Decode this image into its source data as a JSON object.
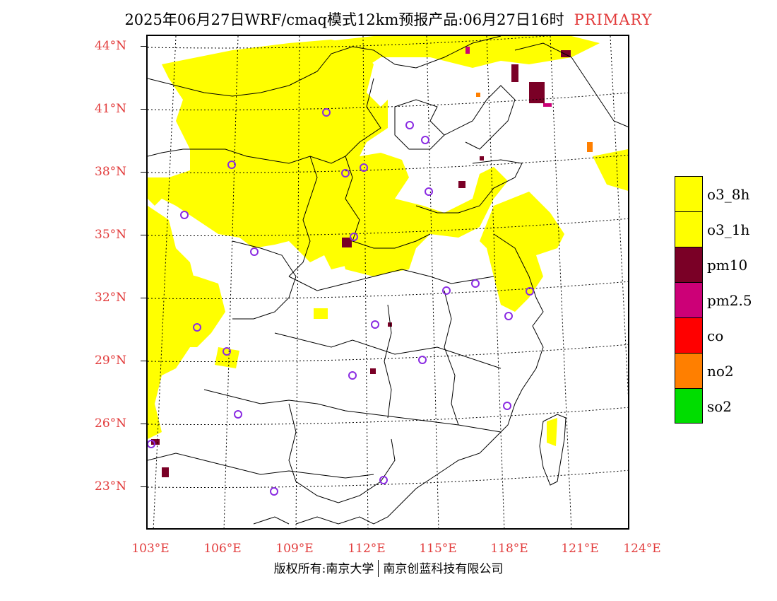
{
  "title": {
    "main": "2025年06月27日WRF/cmaq模式12km预报产品:06月27日16时",
    "tag": "PRIMARY"
  },
  "colors": {
    "accent_label": "#e23b3b",
    "o3_8h": "#ffff00",
    "o3_1h": "#ffff00",
    "pm10": "#7a0026",
    "pm2_5": "#cc0077",
    "co": "#ff0000",
    "no2": "#ff7f00",
    "so2": "#00dd00",
    "station_marker": "#8a2be2"
  },
  "axes": {
    "lat_labels": [
      "44°N",
      "41°N",
      "38°N",
      "35°N",
      "32°N",
      "29°N",
      "26°N",
      "23°N"
    ],
    "lon_labels": [
      "103°E",
      "106°E",
      "109°E",
      "112°E",
      "115°E",
      "118°E",
      "121°E",
      "124°E"
    ]
  },
  "legend": [
    {
      "label": "o3_8h",
      "color": "#ffff00"
    },
    {
      "label": "o3_1h",
      "color": "#ffff00"
    },
    {
      "label": "pm10",
      "color": "#7a0026"
    },
    {
      "label": "pm2.5",
      "color": "#cc0077"
    },
    {
      "label": "co",
      "color": "#ff0000"
    },
    {
      "label": "no2",
      "color": "#ff7f00"
    },
    {
      "label": "so2",
      "color": "#00dd00"
    }
  ],
  "footer": {
    "left": "版权所有:南京大学",
    "right": "南京创蓝科技有限公司"
  }
}
